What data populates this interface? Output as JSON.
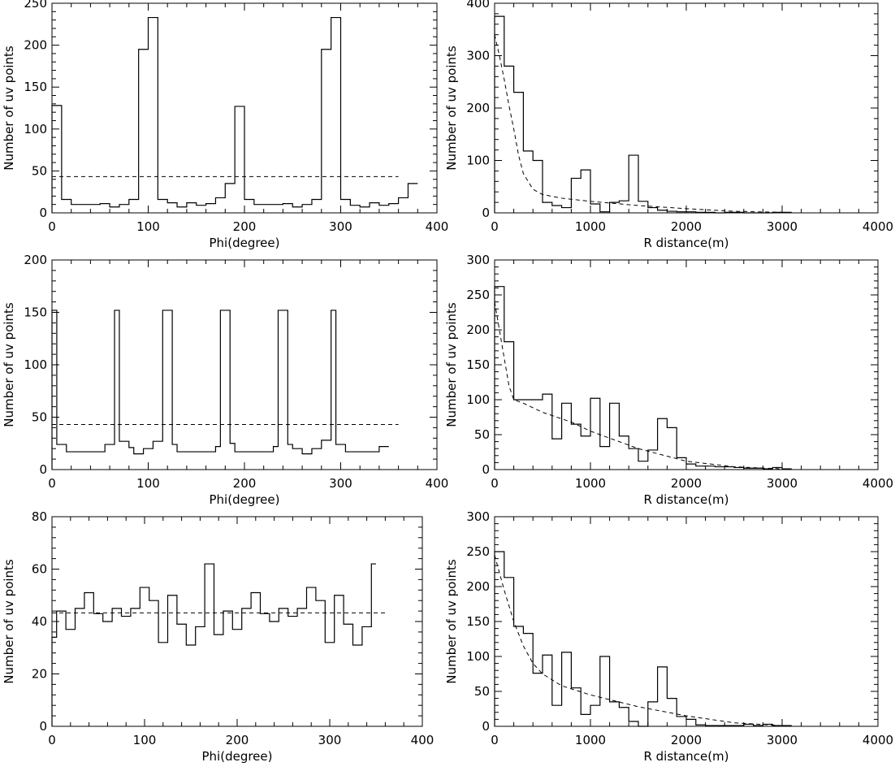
{
  "chart_data": [
    {
      "id": "phi-1",
      "type": "histogram",
      "xlabel": "Phi(degree)",
      "ylabel": "Number of uv points",
      "xlim": [
        0,
        400
      ],
      "ylim": [
        0,
        250
      ],
      "xticks": [
        0,
        100,
        200,
        300,
        400
      ],
      "yticks": [
        0,
        50,
        100,
        150,
        200,
        250
      ],
      "bin_width": 10,
      "bin_start": 0,
      "values": [
        128,
        16,
        10,
        10,
        10,
        11,
        7,
        10,
        16,
        195,
        233,
        16,
        12,
        7,
        12,
        9,
        11,
        18,
        35,
        127,
        16,
        10,
        10,
        10,
        11,
        7,
        10,
        16,
        195,
        233,
        16,
        9,
        7,
        12,
        9,
        11,
        18,
        35
      ],
      "fit": {
        "kind": "constant",
        "y": 43.2
      }
    },
    {
      "id": "r-1",
      "type": "histogram",
      "xlabel": "R distance(m)",
      "ylabel": "Number of uv points",
      "xlim": [
        0,
        4000
      ],
      "ylim": [
        0,
        400
      ],
      "xticks": [
        0,
        1000,
        2000,
        3000,
        4000
      ],
      "yticks": [
        0,
        100,
        200,
        300,
        400
      ],
      "bin_width": 100,
      "bin_start": 0,
      "values": [
        375,
        280,
        230,
        118,
        100,
        20,
        14,
        10,
        66,
        82,
        17,
        2,
        20,
        23,
        110,
        22,
        10,
        5,
        3,
        2,
        2,
        1,
        1,
        0,
        1,
        1,
        0,
        0,
        0,
        1,
        1
      ],
      "fit": {
        "kind": "curve",
        "x": [
          0,
          50,
          100,
          150,
          200,
          250,
          300,
          400,
          500,
          700,
          1000,
          1500,
          2000,
          2500,
          3000
        ],
        "y": [
          340,
          300,
          255,
          205,
          160,
          110,
          75,
          45,
          35,
          28,
          22,
          14,
          8,
          3,
          1
        ]
      }
    },
    {
      "id": "phi-2",
      "type": "histogram",
      "xlabel": "Phi(degree)",
      "ylabel": "Number of uv points",
      "xlim": [
        0,
        400
      ],
      "ylim": [
        0,
        200
      ],
      "xticks": [
        0,
        100,
        200,
        300,
        400
      ],
      "yticks": [
        0,
        50,
        100,
        150,
        200
      ],
      "bin_width": 10,
      "bin_start": 0,
      "values": [
        152,
        24,
        17,
        17,
        17,
        17,
        24,
        152,
        27,
        21,
        15,
        20,
        27,
        152,
        24,
        17,
        17,
        17,
        17,
        22,
        152,
        25,
        17,
        17,
        17,
        17,
        22,
        152,
        24,
        20,
        15,
        20,
        28,
        152,
        24,
        17,
        17,
        17,
        17,
        22
      ],
      "bin_edges": [
        0,
        5,
        15,
        25,
        35,
        45,
        55,
        65,
        70,
        80,
        85,
        95,
        105,
        115,
        125,
        130,
        140,
        150,
        160,
        170,
        175,
        185,
        190,
        200,
        210,
        220,
        230,
        235,
        245,
        250,
        260,
        270,
        280,
        290,
        295,
        305,
        310,
        320,
        330,
        340,
        350
      ],
      "fit": {
        "kind": "constant",
        "y": 43
      }
    },
    {
      "id": "r-2",
      "type": "histogram",
      "xlabel": "R distance(m)",
      "ylabel": "Number of uv points",
      "xlim": [
        0,
        4000
      ],
      "ylim": [
        0,
        300
      ],
      "xticks": [
        0,
        1000,
        2000,
        3000,
        4000
      ],
      "yticks": [
        0,
        50,
        100,
        150,
        200,
        250,
        300
      ],
      "bin_width": 100,
      "bin_start": 0,
      "values": [
        262,
        183,
        100,
        100,
        100,
        108,
        44,
        95,
        65,
        48,
        102,
        33,
        95,
        48,
        30,
        12,
        28,
        73,
        60,
        17,
        8,
        5,
        5,
        4,
        4,
        3,
        2,
        2,
        1,
        3,
        1
      ],
      "fit": {
        "kind": "curve",
        "x": [
          0,
          50,
          100,
          150,
          200,
          300,
          500,
          800,
          1000,
          1500,
          2000,
          2500,
          3000
        ],
        "y": [
          240,
          200,
          160,
          120,
          100,
          95,
          82,
          68,
          55,
          30,
          12,
          4,
          1
        ]
      }
    },
    {
      "id": "phi-3",
      "type": "histogram",
      "xlabel": "Phi(degree)",
      "ylabel": "Number of uv points",
      "xlim": [
        0,
        400
      ],
      "ylim": [
        0,
        80
      ],
      "xticks": [
        0,
        100,
        200,
        300,
        400
      ],
      "yticks": [
        0,
        20,
        40,
        60,
        80
      ],
      "bin_width": 10,
      "bin_start": 0,
      "values": [
        34,
        44,
        37,
        45,
        51,
        43,
        40,
        45,
        42,
        45,
        53,
        48,
        32,
        50,
        39,
        31,
        38,
        62,
        35,
        44,
        37,
        45,
        51,
        43,
        40,
        45,
        42,
        45,
        53,
        48,
        32,
        50,
        39,
        31,
        38,
        62
      ],
      "bin_edges": [
        0,
        5,
        15,
        25,
        35,
        45,
        55,
        65,
        75,
        85,
        95,
        105,
        115,
        125,
        135,
        145,
        155,
        165,
        175,
        185,
        195,
        205,
        215,
        225,
        235,
        245,
        255,
        265,
        275,
        285,
        295,
        305,
        315,
        325,
        335,
        345,
        350
      ],
      "fit": {
        "kind": "constant",
        "y": 43.3
      }
    },
    {
      "id": "r-3",
      "type": "histogram",
      "xlabel": "R distance(m)",
      "ylabel": "Number of uv points",
      "xlim": [
        0,
        4000
      ],
      "ylim": [
        0,
        300
      ],
      "xticks": [
        0,
        1000,
        2000,
        3000,
        4000
      ],
      "yticks": [
        0,
        50,
        100,
        150,
        200,
        250,
        300
      ],
      "bin_width": 100,
      "bin_start": 0,
      "values": [
        250,
        213,
        143,
        133,
        76,
        102,
        30,
        106,
        55,
        17,
        30,
        100,
        35,
        27,
        7,
        0,
        35,
        85,
        40,
        14,
        10,
        2,
        1,
        1,
        1,
        1,
        3,
        1,
        3,
        1,
        1
      ],
      "fit": {
        "kind": "curve",
        "x": [
          0,
          50,
          100,
          200,
          300,
          400,
          500,
          700,
          1000,
          1500,
          2000,
          2500,
          3000
        ],
        "y": [
          245,
          220,
          195,
          150,
          115,
          90,
          75,
          58,
          45,
          28,
          15,
          5,
          1
        ]
      }
    }
  ]
}
